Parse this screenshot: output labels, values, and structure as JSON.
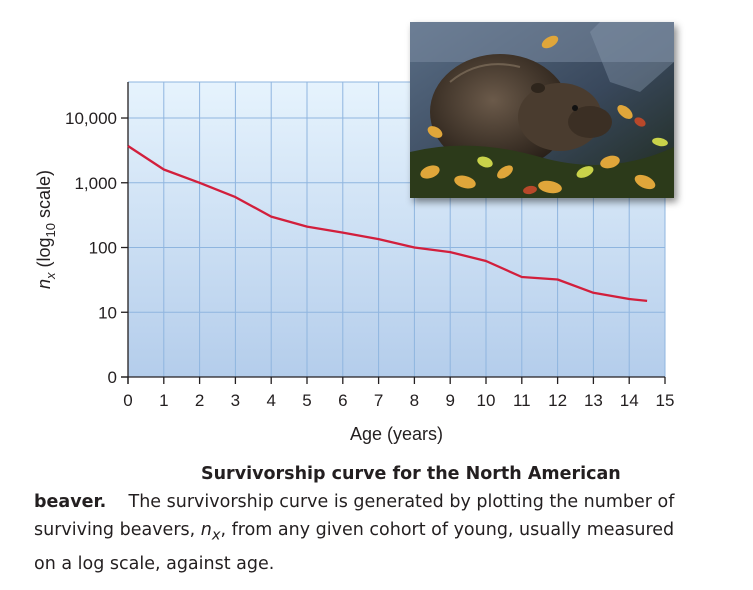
{
  "chart_data": {
    "type": "line",
    "x": [
      0,
      1,
      2,
      3,
      4,
      5,
      6,
      7,
      8,
      9,
      10,
      11,
      12,
      13,
      14,
      14.5
    ],
    "y": [
      3700,
      1600,
      1000,
      600,
      300,
      210,
      170,
      135,
      100,
      85,
      62,
      35,
      32,
      20,
      16,
      15
    ],
    "xlabel": "Age (years)",
    "ylabel_parts": {
      "n": "n",
      "sub_x": "x",
      "pre": " (log",
      "sub_10": "10",
      "post": " scale)"
    },
    "xlim": [
      0,
      15
    ],
    "y_scale": "log10",
    "y_ticks": [
      {
        "label": "0"
      },
      {
        "value": 10,
        "label": "10"
      },
      {
        "value": 100,
        "label": "100"
      },
      {
        "value": 1000,
        "label": "1,000"
      },
      {
        "value": 10000,
        "label": "10,000"
      }
    ],
    "x_ticks": [
      "0",
      "1",
      "2",
      "3",
      "4",
      "5",
      "6",
      "7",
      "8",
      "9",
      "10",
      "11",
      "12",
      "13",
      "14",
      "15"
    ],
    "grid": true,
    "colors": {
      "line": "#d21f3c",
      "plot_top": "#e6f3fd",
      "plot_bottom": "#b4cdeb",
      "grid": "#8fb5df"
    }
  },
  "photo": {
    "subject": "beaver-photo"
  },
  "caption": {
    "title_line1": "Survivorship curve for the North American",
    "title_line2": "beaver.",
    "body_pre": "The survivorship curve is generated by plotting the number of surviving beavers, ",
    "n": "n",
    "sub_x": "x",
    "body_post": ", from any given cohort of young, usually measured on a log scale, against age."
  }
}
